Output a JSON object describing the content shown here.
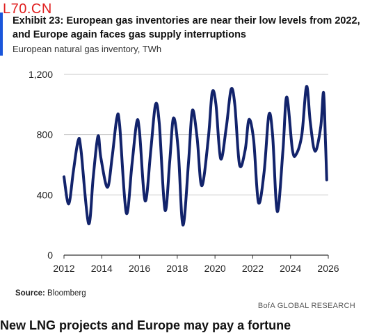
{
  "watermark": "L70.CN",
  "title": "Exhibit 23: European gas inventories are near their low levels from 2022, and Europe again faces gas supply interruptions",
  "subtitle": "European natural gas inventory, TWh",
  "source_label": "Source:",
  "source_value": "Bloomberg",
  "brand": "BofA GLOBAL RESEARCH",
  "cut_text": "New LNG projects and Europe may pay a fortune",
  "colors": {
    "line": "#12236b",
    "grid": "#c8c8c8",
    "accent": "#1a56db"
  },
  "chart_data": {
    "type": "line",
    "title": "European natural gas inventory, TWh",
    "xlabel": "",
    "ylabel": "",
    "xlim": [
      2012,
      2026
    ],
    "ylim": [
      0,
      1200
    ],
    "x_ticks": [
      "2012",
      "2014",
      "2016",
      "2018",
      "2020",
      "2022",
      "2024",
      "2026"
    ],
    "y_ticks": [
      "0",
      "400",
      "800",
      "1,200"
    ],
    "grid": true,
    "series": [
      {
        "name": "",
        "x": [
          2012.0,
          2012.25,
          2012.5,
          2012.75,
          2012.9,
          2013.3,
          2013.55,
          2013.8,
          2013.95,
          2014.3,
          2014.55,
          2014.8,
          2014.95,
          2015.3,
          2015.6,
          2015.85,
          2016.0,
          2016.3,
          2016.6,
          2016.85,
          2017.05,
          2017.35,
          2017.6,
          2017.8,
          2018.05,
          2018.3,
          2018.6,
          2018.8,
          2019.05,
          2019.3,
          2019.65,
          2019.85,
          2020.05,
          2020.3,
          2020.6,
          2020.85,
          2021.05,
          2021.3,
          2021.6,
          2021.8,
          2022.05,
          2022.3,
          2022.6,
          2022.85,
          2023.05,
          2023.3,
          2023.6,
          2023.8,
          2024.1,
          2024.3,
          2024.6,
          2024.85,
          2025.05,
          2025.3,
          2025.6,
          2025.75,
          2025.85,
          2025.92
        ],
        "values": [
          520,
          340,
          560,
          760,
          700,
          210,
          520,
          790,
          650,
          450,
          650,
          910,
          860,
          280,
          600,
          880,
          820,
          360,
          700,
          1000,
          870,
          300,
          620,
          910,
          700,
          200,
          620,
          960,
          780,
          460,
          780,
          1080,
          1000,
          640,
          850,
          1100,
          1000,
          600,
          700,
          900,
          760,
          350,
          550,
          930,
          800,
          290,
          700,
          1050,
          700,
          670,
          800,
          1120,
          880,
          690,
          850,
          1080,
          760,
          500
        ]
      }
    ]
  }
}
